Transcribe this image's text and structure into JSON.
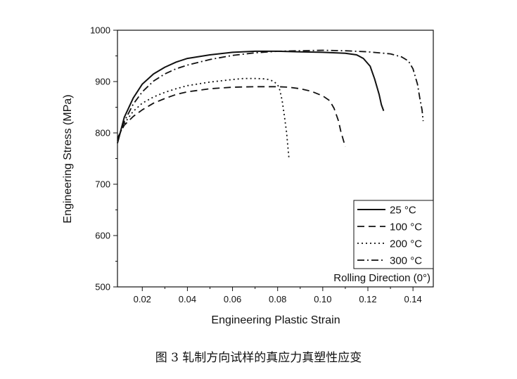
{
  "caption": "图 3  轧制方向试样的真应力真塑性应变",
  "chart_data": {
    "type": "line",
    "xlabel": "Engineering Plastic Strain",
    "ylabel": "Engineering Stress (MPa)",
    "xlim": [
      0.009,
      0.149
    ],
    "ylim": [
      500,
      1000
    ],
    "xticks": [
      0.02,
      0.04,
      0.06,
      0.08,
      0.1,
      0.12,
      0.14
    ],
    "xtick_labels": [
      "0.02",
      "0.04",
      "0.06",
      "0.08",
      "0.10",
      "0.12",
      "0.14"
    ],
    "yticks": [
      500,
      600,
      700,
      800,
      900,
      1000
    ],
    "ytick_labels": [
      "500",
      "600",
      "700",
      "800",
      "900",
      "1000"
    ],
    "grid": false,
    "legend_position": "bottom-right",
    "annotation": "Rolling Direction (0°)",
    "series": [
      {
        "name": "25 °C",
        "style": "solid",
        "color": "#111111",
        "points": [
          [
            0.009,
            780
          ],
          [
            0.012,
            830
          ],
          [
            0.016,
            868
          ],
          [
            0.02,
            895
          ],
          [
            0.025,
            915
          ],
          [
            0.03,
            928
          ],
          [
            0.035,
            938
          ],
          [
            0.04,
            945
          ],
          [
            0.05,
            952
          ],
          [
            0.06,
            957
          ],
          [
            0.07,
            959
          ],
          [
            0.08,
            959
          ],
          [
            0.09,
            958
          ],
          [
            0.1,
            957
          ],
          [
            0.11,
            955
          ],
          [
            0.115,
            952
          ],
          [
            0.118,
            945
          ],
          [
            0.121,
            930
          ],
          [
            0.123,
            905
          ],
          [
            0.125,
            875
          ],
          [
            0.126,
            855
          ],
          [
            0.127,
            843
          ]
        ]
      },
      {
        "name": "100 °C",
        "style": "dashed",
        "color": "#111111",
        "points": [
          [
            0.009,
            790
          ],
          [
            0.012,
            815
          ],
          [
            0.016,
            832
          ],
          [
            0.02,
            845
          ],
          [
            0.025,
            858
          ],
          [
            0.03,
            867
          ],
          [
            0.035,
            875
          ],
          [
            0.04,
            880
          ],
          [
            0.05,
            886
          ],
          [
            0.06,
            889
          ],
          [
            0.07,
            890
          ],
          [
            0.08,
            890
          ],
          [
            0.085,
            889
          ],
          [
            0.09,
            886
          ],
          [
            0.095,
            881
          ],
          [
            0.1,
            872
          ],
          [
            0.103,
            863
          ],
          [
            0.105,
            848
          ],
          [
            0.107,
            823
          ],
          [
            0.108,
            803
          ],
          [
            0.109,
            788
          ],
          [
            0.11,
            773
          ]
        ]
      },
      {
        "name": "200 °C",
        "style": "dotted",
        "color": "#111111",
        "points": [
          [
            0.009,
            788
          ],
          [
            0.012,
            818
          ],
          [
            0.016,
            842
          ],
          [
            0.02,
            858
          ],
          [
            0.025,
            870
          ],
          [
            0.03,
            879
          ],
          [
            0.035,
            886
          ],
          [
            0.04,
            892
          ],
          [
            0.05,
            899
          ],
          [
            0.06,
            904
          ],
          [
            0.065,
            906
          ],
          [
            0.07,
            906
          ],
          [
            0.075,
            905
          ],
          [
            0.078,
            901
          ],
          [
            0.08,
            894
          ],
          [
            0.081,
            883
          ],
          [
            0.082,
            863
          ],
          [
            0.083,
            833
          ],
          [
            0.084,
            800
          ],
          [
            0.0845,
            775
          ],
          [
            0.085,
            752
          ]
        ]
      },
      {
        "name": "300 °C",
        "style": "dashdot",
        "color": "#111111",
        "points": [
          [
            0.009,
            785
          ],
          [
            0.012,
            822
          ],
          [
            0.016,
            856
          ],
          [
            0.02,
            880
          ],
          [
            0.025,
            901
          ],
          [
            0.03,
            915
          ],
          [
            0.035,
            925
          ],
          [
            0.04,
            932
          ],
          [
            0.05,
            943
          ],
          [
            0.06,
            951
          ],
          [
            0.07,
            956
          ],
          [
            0.08,
            959
          ],
          [
            0.09,
            960
          ],
          [
            0.1,
            961
          ],
          [
            0.11,
            960
          ],
          [
            0.12,
            958
          ],
          [
            0.13,
            954
          ],
          [
            0.135,
            948
          ],
          [
            0.138,
            940
          ],
          [
            0.14,
            925
          ],
          [
            0.142,
            895
          ],
          [
            0.143,
            868
          ],
          [
            0.144,
            845
          ],
          [
            0.1445,
            823
          ]
        ]
      }
    ]
  }
}
